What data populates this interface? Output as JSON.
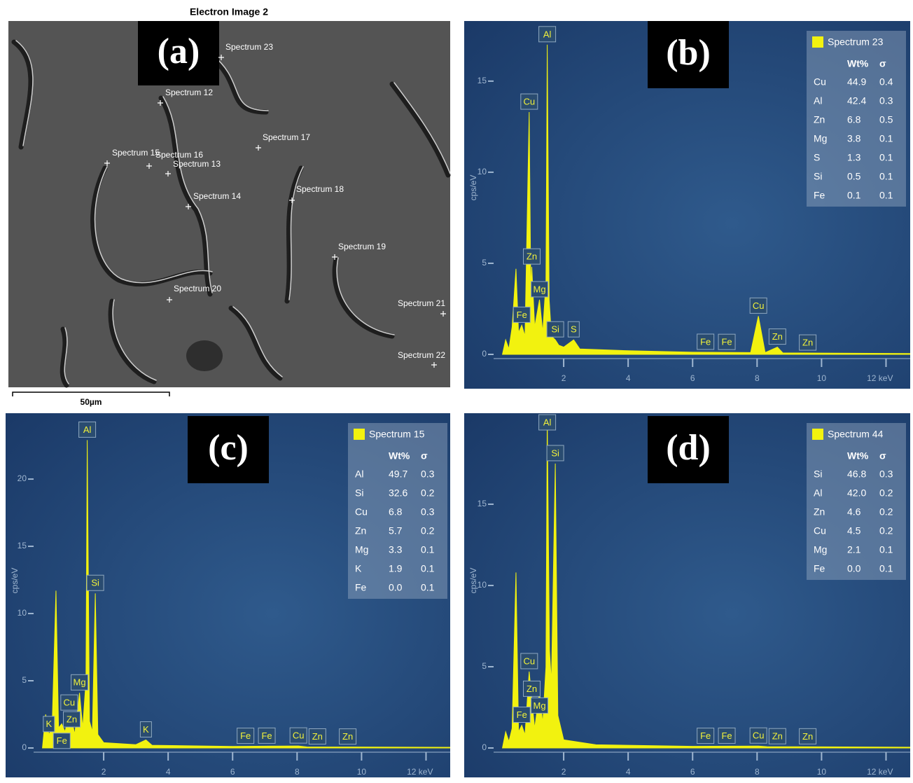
{
  "image_panel": {
    "panel_label": "(a)",
    "title": "Electron Image 2",
    "scale_bar": "50µm",
    "points": [
      "Spectrum 23",
      "Spectrum 12",
      "Spectrum 17",
      "Spectrum 15",
      "Spectrum 16",
      "Spectrum 13",
      "Spectrum 14",
      "Spectrum 18",
      "Spectrum 19",
      "Spectrum 20",
      "Spectrum 21",
      "Spectrum 22"
    ]
  },
  "chart_data": [
    {
      "type": "area",
      "panel_label": "(b)",
      "y_label": "cps/eV",
      "x": [
        0.1,
        0.2,
        0.3,
        0.4,
        0.52,
        0.6,
        0.7,
        0.8,
        0.93,
        0.98,
        1.01,
        1.1,
        1.25,
        1.35,
        1.45,
        1.49,
        1.55,
        1.62,
        1.74,
        1.85,
        2.0,
        2.31,
        2.5,
        4,
        6,
        7.8,
        8.04,
        8.25,
        8.63,
        8.8,
        12.75
      ],
      "series": [
        {
          "name": "Spectrum 23",
          "color": "#f2f20f",
          "values": [
            0,
            0.8,
            0.3,
            1.5,
            4.7,
            1.2,
            1.6,
            1.0,
            13.3,
            3.5,
            4.8,
            1.5,
            3.0,
            1.2,
            4,
            17.0,
            3,
            1.0,
            0.8,
            0.5,
            0.4,
            0.8,
            0.3,
            0.2,
            0.12,
            0.1,
            2.1,
            0.1,
            0.4,
            0.08,
            0.05
          ]
        }
      ],
      "xlim": [
        0,
        12.75
      ],
      "ylim": [
        0,
        18.3
      ],
      "xticks": [
        2,
        4,
        6,
        8,
        10,
        {
          "value": 12,
          "label": "12 keV"
        }
      ],
      "yticks": [
        0,
        5,
        10,
        15
      ],
      "annotations": [
        {
          "label": "Al",
          "x": 1.49
        },
        {
          "label": "Cu",
          "x": 0.93
        },
        {
          "label": "Zn",
          "x": 1.01
        },
        {
          "label": "Mg",
          "x": 1.25
        },
        {
          "label": "Fe",
          "x": 0.7
        },
        {
          "label": "Si",
          "x": 1.74
        },
        {
          "label": "S",
          "x": 2.31
        },
        {
          "label": "Cu",
          "x": 8.04
        },
        {
          "label": "Fe",
          "x": 6.4
        },
        {
          "label": "Fe",
          "x": 7.06
        },
        {
          "label": "Zn",
          "x": 8.63
        },
        {
          "label": "Zn",
          "x": 9.57
        }
      ],
      "table": {
        "columns": [
          "Wt%",
          "σ"
        ],
        "rows": [
          {
            "element": "Cu",
            "wt": "44.9",
            "sigma": "0.4"
          },
          {
            "element": "Al",
            "wt": "42.4",
            "sigma": "0.3"
          },
          {
            "element": "Zn",
            "wt": "6.8",
            "sigma": "0.5"
          },
          {
            "element": "Mg",
            "wt": "3.8",
            "sigma": "0.1"
          },
          {
            "element": "S",
            "wt": "1.3",
            "sigma": "0.1"
          },
          {
            "element": "Si",
            "wt": "0.5",
            "sigma": "0.1",
            "color": "#e8202a"
          },
          {
            "element": "Fe",
            "wt": "0.1",
            "sigma": "0.1",
            "color": "#e8202a"
          }
        ]
      }
    },
    {
      "type": "area",
      "panel_label": "(c)",
      "y_label": "cps/eV",
      "x": [
        0.1,
        0.2,
        0.3,
        0.4,
        0.52,
        0.6,
        0.7,
        0.8,
        0.93,
        1.01,
        1.1,
        1.25,
        1.35,
        1.45,
        1.49,
        1.56,
        1.65,
        1.74,
        1.82,
        2.0,
        3.0,
        3.31,
        3.5,
        6,
        8.04,
        8.3,
        12.75
      ],
      "series": [
        {
          "name": "Spectrum 15",
          "color": "#f2f20f",
          "values": [
            0,
            2.5,
            1.0,
            1.5,
            11.7,
            1.5,
            1.8,
            1.2,
            2.6,
            2.2,
            1.0,
            4.1,
            1.5,
            5,
            22.9,
            2,
            1.2,
            11.5,
            1.0,
            0.4,
            0.25,
            0.6,
            0.2,
            0.12,
            0.15,
            0.08,
            0.05
          ]
        }
      ],
      "xlim": [
        0,
        12.75
      ],
      "ylim": [
        0,
        24.9
      ],
      "xticks": [
        2,
        4,
        6,
        8,
        10,
        {
          "value": 12,
          "label": "12 keV"
        }
      ],
      "yticks": [
        0,
        5,
        10,
        15,
        20
      ],
      "annotations": [
        {
          "label": "Al",
          "x": 1.49
        },
        {
          "label": "Si",
          "x": 1.74
        },
        {
          "label": "Mg",
          "x": 1.25
        },
        {
          "label": "Cu",
          "x": 0.93
        },
        {
          "label": "Zn",
          "x": 1.01
        },
        {
          "label": "K",
          "x": 0.3
        },
        {
          "label": "Fe",
          "x": 0.7
        },
        {
          "label": "K",
          "x": 3.31
        },
        {
          "label": "Fe",
          "x": 6.4
        },
        {
          "label": "Fe",
          "x": 7.06
        },
        {
          "label": "Cu",
          "x": 8.04
        },
        {
          "label": "Zn",
          "x": 8.63
        },
        {
          "label": "Zn",
          "x": 9.57
        }
      ],
      "table": {
        "columns": [
          "Wt%",
          "σ"
        ],
        "rows": [
          {
            "element": "Al",
            "wt": "49.7",
            "sigma": "0.3"
          },
          {
            "element": "Si",
            "wt": "32.6",
            "sigma": "0.2"
          },
          {
            "element": "Cu",
            "wt": "6.8",
            "sigma": "0.3"
          },
          {
            "element": "Zn",
            "wt": "5.7",
            "sigma": "0.2"
          },
          {
            "element": "Mg",
            "wt": "3.3",
            "sigma": "0.1"
          },
          {
            "element": "K",
            "wt": "1.9",
            "sigma": "0.1"
          },
          {
            "element": "Fe",
            "wt": "0.0",
            "sigma": "0.1",
            "color": "#e8202a"
          }
        ]
      }
    },
    {
      "type": "area",
      "panel_label": "(d)",
      "y_label": "cps/eV",
      "x": [
        0.1,
        0.2,
        0.3,
        0.4,
        0.52,
        0.6,
        0.7,
        0.8,
        0.93,
        1.01,
        1.1,
        1.25,
        1.35,
        1.45,
        1.49,
        1.56,
        1.62,
        1.74,
        1.82,
        2.0,
        3.0,
        6,
        8.04,
        8.3,
        12.75
      ],
      "series": [
        {
          "name": "Spectrum 44",
          "color": "#f2f20f",
          "values": [
            0,
            1.0,
            0.4,
            1.2,
            10.8,
            1.0,
            1.4,
            0.8,
            4.7,
            3.0,
            1.2,
            3.5,
            1.5,
            5,
            20.4,
            6,
            4,
            17.5,
            2,
            0.5,
            0.2,
            0.1,
            0.12,
            0.08,
            0.05
          ]
        }
      ],
      "xlim": [
        0,
        12.75
      ],
      "ylim": [
        0,
        20.6
      ],
      "xticks": [
        2,
        4,
        6,
        8,
        10,
        {
          "value": 12,
          "label": "12 keV"
        }
      ],
      "yticks": [
        0,
        5,
        10,
        15
      ],
      "annotations": [
        {
          "label": "Al",
          "x": 1.49
        },
        {
          "label": "Si",
          "x": 1.74
        },
        {
          "label": "Zn",
          "x": 1.01
        },
        {
          "label": "Mg",
          "x": 1.25
        },
        {
          "label": "Cu",
          "x": 0.93
        },
        {
          "label": "Fe",
          "x": 0.7
        },
        {
          "label": "Fe",
          "x": 6.4
        },
        {
          "label": "Fe",
          "x": 7.06
        },
        {
          "label": "Cu",
          "x": 8.04
        },
        {
          "label": "Zn",
          "x": 8.63
        },
        {
          "label": "Zn",
          "x": 9.57
        }
      ],
      "table": {
        "columns": [
          "Wt%",
          "σ"
        ],
        "rows": [
          {
            "element": "Si",
            "wt": "46.8",
            "sigma": "0.3"
          },
          {
            "element": "Al",
            "wt": "42.0",
            "sigma": "0.2"
          },
          {
            "element": "Zn",
            "wt": "4.6",
            "sigma": "0.2"
          },
          {
            "element": "Cu",
            "wt": "4.5",
            "sigma": "0.2"
          },
          {
            "element": "Mg",
            "wt": "2.1",
            "sigma": "0.1"
          },
          {
            "element": "Fe",
            "wt": "0.0",
            "sigma": "0.1",
            "color": "#e8202a"
          }
        ]
      }
    }
  ]
}
